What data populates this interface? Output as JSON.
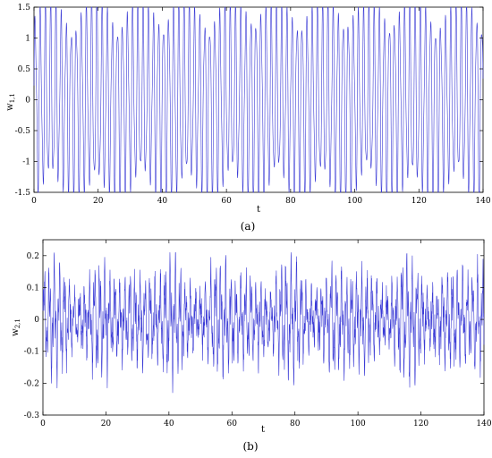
{
  "colors": {
    "series": "#3b3bd6",
    "axis": "#000000"
  },
  "chart_data": [
    {
      "type": "line",
      "caption_label": "(a)",
      "xlabel": "t",
      "ylabel_main": "w",
      "ylabel_sub": "1,1",
      "xlim": [
        0,
        140
      ],
      "ylim": [
        -1.5,
        1.5
      ],
      "xticks": [
        0,
        20,
        40,
        60,
        80,
        100,
        120,
        140
      ],
      "xtick_labels": [
        "0",
        "20",
        "40",
        "60",
        "80",
        "100",
        "120",
        "140"
      ],
      "yticks": [
        1.5,
        1,
        0.5,
        0,
        -0.5,
        -1,
        -1.5
      ],
      "ytick_labels": [
        "1.5",
        "1",
        "0.5",
        "0",
        "-0.5",
        "-1",
        "-1.5"
      ],
      "grid": false,
      "series": [
        {
          "color": "#3b3bd6",
          "description_of_signal": "dense oscillation, amplitude about 1.4, period about 1.6",
          "amplitude_envelope": [
            1.25,
            1.45
          ],
          "dominant_period": 1.6,
          "t_range": [
            0,
            140
          ]
        }
      ]
    },
    {
      "type": "line",
      "caption_label": "(b)",
      "xlabel": "t",
      "ylabel_main": "w",
      "ylabel_sub": "2,1",
      "xlim": [
        0,
        140
      ],
      "ylim": [
        -0.3,
        0.25
      ],
      "xticks": [
        0,
        20,
        40,
        60,
        80,
        100,
        120,
        140
      ],
      "xtick_labels": [
        "0",
        "20",
        "40",
        "60",
        "80",
        "100",
        "120",
        "140"
      ],
      "yticks": [
        0.2,
        0.1,
        0,
        -0.1,
        -0.2,
        -0.3
      ],
      "ytick_labels": [
        "0.2",
        "0.1",
        "0",
        "-0.1",
        "-0.2",
        "-0.3"
      ],
      "grid": false,
      "series": [
        {
          "color": "#3b3bd6",
          "description_of_signal": "irregular oscillation with bursts, amplitude about 0.2",
          "amplitude_envelope": [
            0.08,
            0.21
          ],
          "dominant_period": 1.6,
          "t_range": [
            0,
            140
          ]
        }
      ]
    }
  ]
}
